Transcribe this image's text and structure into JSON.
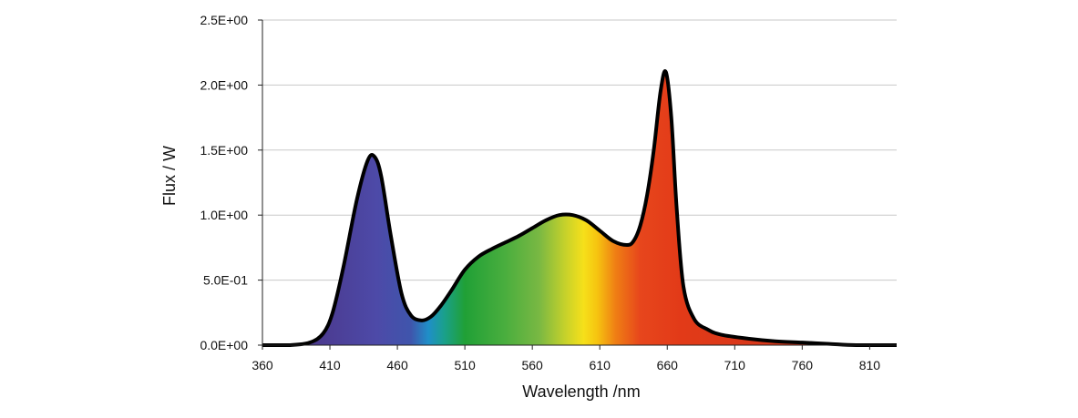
{
  "chart_data": {
    "type": "area",
    "title": "",
    "xlabel": "Wavelength /nm",
    "ylabel": "Flux / W",
    "xlim": [
      360,
      830
    ],
    "ylim": [
      0,
      2.5
    ],
    "x_ticks": [
      "360",
      "410",
      "460",
      "510",
      "560",
      "610",
      "660",
      "710",
      "760",
      "810"
    ],
    "y_ticks": [
      "0.0E+00",
      "5.0E-01",
      "1.0E+00",
      "1.5E+00",
      "2.0E+00",
      "2.5E+00"
    ],
    "grid": "horizontal",
    "fill": "visible-spectrum gradient",
    "line_color": "#000000",
    "x": [
      360,
      380,
      395,
      405,
      412,
      420,
      430,
      438,
      443,
      448,
      455,
      463,
      470,
      478,
      485,
      492,
      500,
      510,
      520,
      530,
      540,
      550,
      560,
      570,
      580,
      590,
      600,
      610,
      620,
      630,
      635,
      640,
      645,
      650,
      655,
      659,
      663,
      667,
      672,
      680,
      690,
      700,
      720,
      740,
      760,
      780,
      800,
      830
    ],
    "values": [
      0.0,
      0.0,
      0.02,
      0.09,
      0.25,
      0.6,
      1.12,
      1.42,
      1.45,
      1.3,
      0.85,
      0.4,
      0.23,
      0.19,
      0.22,
      0.3,
      0.42,
      0.58,
      0.68,
      0.74,
      0.79,
      0.84,
      0.9,
      0.96,
      1.0,
      1.0,
      0.96,
      0.88,
      0.8,
      0.77,
      0.8,
      0.92,
      1.15,
      1.5,
      1.95,
      2.1,
      1.75,
      1.05,
      0.45,
      0.2,
      0.12,
      0.08,
      0.05,
      0.03,
      0.02,
      0.01,
      0.0,
      0.0
    ]
  }
}
